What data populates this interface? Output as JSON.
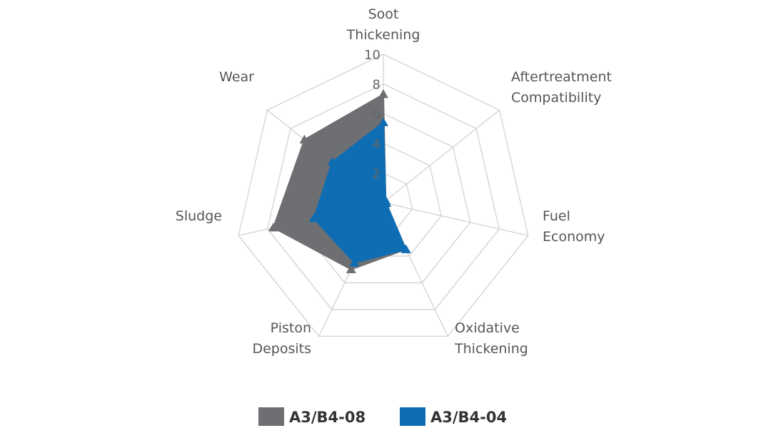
{
  "chart_data": {
    "type": "radar",
    "title": "",
    "axes": [
      [
        "Soot",
        "Thickening"
      ],
      [
        "Aftertreatment",
        "Compatibility"
      ],
      [
        "Fuel",
        "Economy"
      ],
      [
        "Oxidative",
        "Thickening"
      ],
      [
        "Piston",
        "Deposits"
      ],
      [
        "Sludge"
      ],
      [
        "Wear"
      ]
    ],
    "rlim": [
      0,
      10
    ],
    "ticks": [
      "2",
      "4",
      "6",
      "8",
      "10"
    ],
    "tick_values": [
      2,
      4,
      6,
      8,
      10
    ],
    "grid": true,
    "legend_position": "bottom",
    "series": [
      {
        "name": "A3/B4-08",
        "color": "#6e6f72",
        "values": [
          7.3,
          0.2,
          0.2,
          3.5,
          5.0,
          7.6,
          6.8
        ]
      },
      {
        "name": "A3/B4-04",
        "color": "#0f6db3",
        "values": [
          5.4,
          0.2,
          0.2,
          3.5,
          4.5,
          4.8,
          4.4
        ]
      }
    ]
  }
}
